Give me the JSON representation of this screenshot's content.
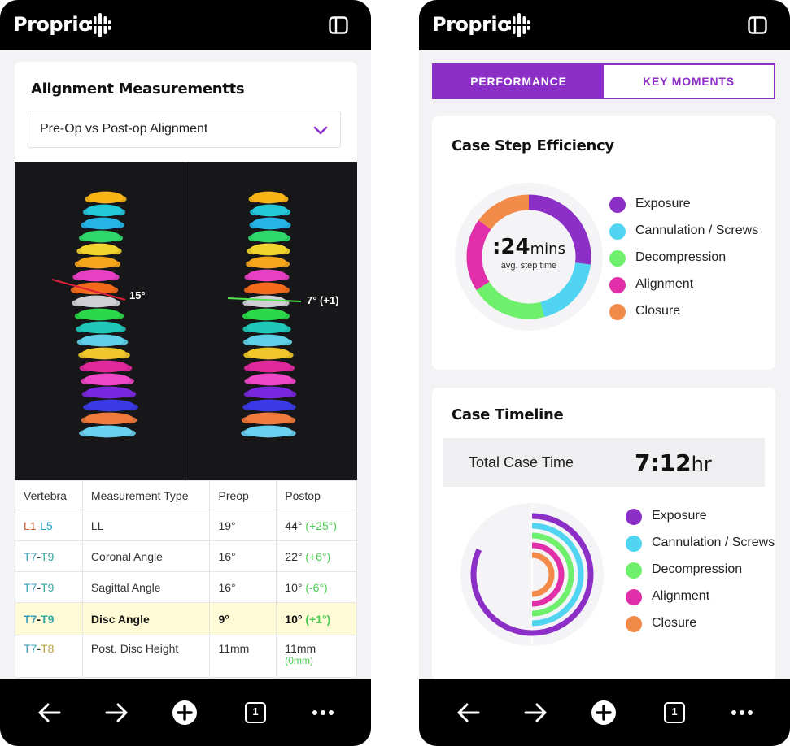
{
  "app": {
    "brand": "Proprio"
  },
  "left": {
    "section_title": "Alignment Measurementts",
    "dropdown": {
      "selected": "Pre-Op vs Post-op Alignment"
    },
    "viewer": {
      "preop_label": "15°",
      "postop_label": "7° (+1)"
    },
    "table": {
      "headers": [
        "Vertebra",
        "Measurement Type",
        "Preop",
        "Postop"
      ],
      "rows": [
        {
          "v1": "L1",
          "sep": "-",
          "v2": "L5",
          "type": "LL",
          "preop": "19°",
          "postop": "44°",
          "delta": "(+25°)"
        },
        {
          "v1": "T7",
          "sep": "-",
          "v2": "T9",
          "type": "Coronal Angle",
          "preop": "16°",
          "postop": "22°",
          "delta": "(+6°)"
        },
        {
          "v1": "T7",
          "sep": "-",
          "v2": "T9",
          "type": "Sagittal Angle",
          "preop": "16°",
          "postop": "10°",
          "delta": "(-6°)"
        },
        {
          "v1": "T7",
          "sep": "-",
          "v2": "T9",
          "type": "Disc Angle",
          "preop": "9°",
          "postop": "10°",
          "delta": "(+1°)"
        },
        {
          "v1": "T7",
          "sep": "-",
          "v2": "T8",
          "type": "Post. Disc Height",
          "preop": "11mm",
          "postop": "11mm",
          "delta": "(0mm)"
        }
      ]
    }
  },
  "right": {
    "tabs": {
      "performance": "PERFORMANCE",
      "key_moments": "KEY MOMENTS",
      "active": "performance"
    },
    "efficiency": {
      "title": "Case Step Efficiency",
      "value": ":24",
      "unit": "mins",
      "sub": "avg. step time"
    },
    "timeline": {
      "title": "Case Timeline",
      "total_label": "Total Case Time",
      "total_value": "7:12",
      "total_unit": "hr"
    },
    "legend": [
      {
        "label": "Exposure",
        "color": "#8c2fc7"
      },
      {
        "label": "Cannulation / Screws",
        "color": "#50d4f2"
      },
      {
        "label": "Decompression",
        "color": "#6ef06c"
      },
      {
        "label": "Alignment",
        "color": "#e02fa8"
      },
      {
        "label": "Closure",
        "color": "#f28a4a"
      }
    ]
  },
  "icons": {
    "back": "arrow-left-icon",
    "forward": "arrow-right-icon",
    "add": "plus-circle-icon",
    "tabs": "tab-count-icon",
    "tab_count": "1",
    "more": "more-icon",
    "sidebar": "sidebar-icon",
    "chevron": "chevron-down-icon"
  },
  "chart_data": [
    {
      "type": "pie",
      "categories": [
        "Exposure",
        "Cannulation / Screws",
        "Decompression",
        "Alignment",
        "Closure"
      ],
      "values": [
        27,
        19,
        20,
        19,
        15
      ],
      "colors": [
        "#8c2fc7",
        "#50d4f2",
        "#6ef06c",
        "#e02fa8",
        "#f28a4a"
      ]
    },
    {
      "type": "bar",
      "categories": [
        "Exposure",
        "Cannulation / Screws",
        "Decompression",
        "Alignment",
        "Closure"
      ],
      "values": [
        82,
        50,
        50,
        50,
        50
      ],
      "colors": [
        "#8c2fc7",
        "#50d4f2",
        "#6ef06c",
        "#e02fa8",
        "#f28a4a"
      ]
    }
  ]
}
